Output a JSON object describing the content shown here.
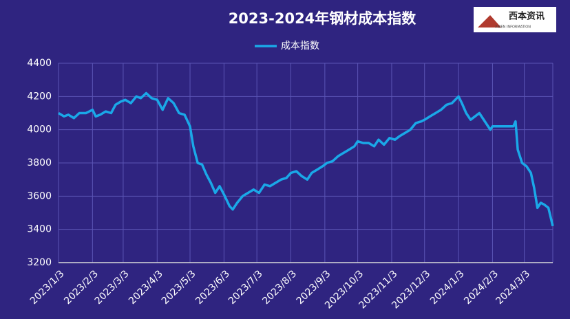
{
  "chart_data": {
    "type": "line",
    "title": "2023-2024年钢材成本指数",
    "x": [
      "2023/1/3",
      "2023/1/8",
      "2023/1/12",
      "2023/1/17",
      "2023/1/22",
      "2023/1/28",
      "2023/2/3",
      "2023/2/6",
      "2023/2/10",
      "2023/2/15",
      "2023/2/20",
      "2023/2/24",
      "2023/3/1",
      "2023/3/5",
      "2023/3/10",
      "2023/3/15",
      "2023/3/19",
      "2023/3/24",
      "2023/3/29",
      "2023/4/3",
      "2023/4/8",
      "2023/4/13",
      "2023/4/18",
      "2023/4/23",
      "2023/4/28",
      "2023/5/3",
      "2023/5/6",
      "2023/5/10",
      "2023/5/14",
      "2023/5/18",
      "2023/5/22",
      "2023/5/26",
      "2023/5/30",
      "2023/6/3",
      "2023/6/8",
      "2023/6/11",
      "2023/6/15",
      "2023/6/20",
      "2023/6/25",
      "2023/6/30",
      "2023/7/5",
      "2023/7/10",
      "2023/7/15",
      "2023/7/20",
      "2023/7/25",
      "2023/7/30",
      "2023/8/3",
      "2023/8/8",
      "2023/8/13",
      "2023/8/18",
      "2023/8/22",
      "2023/8/27",
      "2023/9/1",
      "2023/9/5",
      "2023/9/10",
      "2023/9/15",
      "2023/9/20",
      "2023/9/25",
      "2023/9/30",
      "2023/10/3",
      "2023/10/8",
      "2023/10/13",
      "2023/10/18",
      "2023/10/22",
      "2023/10/27",
      "2023/11/1",
      "2023/11/6",
      "2023/11/10",
      "2023/11/15",
      "2023/11/20",
      "2023/11/25",
      "2023/11/30",
      "2023/12/3",
      "2023/12/8",
      "2023/12/13",
      "2023/12/18",
      "2023/12/23",
      "2023/12/28",
      "2024/1/3",
      "2024/1/6",
      "2024/1/10",
      "2024/1/14",
      "2024/1/18",
      "2024/1/22",
      "2024/1/27",
      "2024/2/1",
      "2024/2/3",
      "2024/2/10",
      "2024/2/22",
      "2024/2/24",
      "2024/2/26",
      "2024/3/1",
      "2024/3/5",
      "2024/3/9",
      "2024/3/12",
      "2024/3/15",
      "2024/3/18",
      "2024/3/21",
      "2024/3/25",
      "2024/3/29"
    ],
    "series": [
      {
        "name": "成本指数",
        "color": "#1aa8e8",
        "values": [
          4100,
          4080,
          4090,
          4070,
          4100,
          4100,
          4120,
          4080,
          4090,
          4110,
          4100,
          4150,
          4170,
          4180,
          4160,
          4200,
          4190,
          4220,
          4190,
          4180,
          4120,
          4190,
          4160,
          4100,
          4090,
          4020,
          3900,
          3800,
          3790,
          3730,
          3680,
          3620,
          3660,
          3610,
          3540,
          3520,
          3560,
          3600,
          3620,
          3640,
          3620,
          3670,
          3660,
          3680,
          3700,
          3710,
          3740,
          3750,
          3720,
          3700,
          3740,
          3760,
          3780,
          3800,
          3810,
          3840,
          3860,
          3880,
          3900,
          3930,
          3920,
          3920,
          3900,
          3940,
          3910,
          3950,
          3940,
          3960,
          3980,
          4000,
          4040,
          4050,
          4060,
          4080,
          4100,
          4120,
          4150,
          4160,
          4200,
          4160,
          4100,
          4060,
          4080,
          4100,
          4050,
          4000,
          4020,
          4020,
          4020,
          4050,
          3880,
          3800,
          3780,
          3740,
          3650,
          3530,
          3560,
          3550,
          3530,
          3420
        ]
      }
    ],
    "xlim": [
      "2023/1/3",
      "2024/3/29"
    ],
    "xticks": [
      "2023/1/3",
      "2023/2/3",
      "2023/3/3",
      "2023/4/3",
      "2023/5/3",
      "2023/6/3",
      "2023/7/3",
      "2023/8/3",
      "2023/9/3",
      "2023/10/3",
      "2023/11/3",
      "2023/12/3",
      "2024/1/3",
      "2024/2/3",
      "2024/3/3"
    ],
    "ylim": [
      3200,
      4400
    ],
    "yticks": [
      3200,
      3400,
      3600,
      3800,
      4000,
      4200,
      4400
    ],
    "grid": true,
    "legend": "top"
  },
  "logo": {
    "title": "西本资讯",
    "subtitle": "XIBEN INFORMATION"
  }
}
